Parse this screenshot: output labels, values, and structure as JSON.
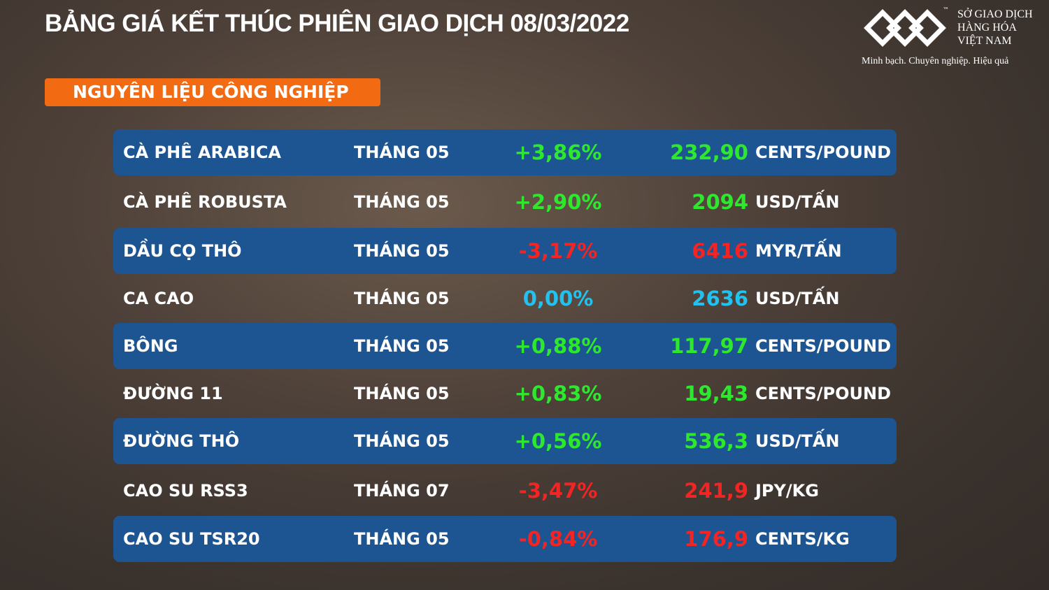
{
  "header": {
    "title": "BẢNG GIÁ KẾT THÚC PHIÊN GIAO DỊCH 08/03/2022"
  },
  "logo": {
    "trademark": "™",
    "lines": [
      "SỞ GIAO DỊCH",
      "HÀNG HÓA",
      "VIỆT NAM"
    ],
    "tagline": "Minh bạch. Chuyên nghiệp. Hiệu quả"
  },
  "section": {
    "label": "NGUYÊN LIỆU CÔNG NGHIỆP"
  },
  "table": {
    "rows": [
      {
        "name": "CÀ PHÊ ARABICA",
        "month": "THÁNG 05",
        "change": "+3,86%",
        "price": "232,90",
        "unit": "CENTS/POUND",
        "color": "#2ee82e"
      },
      {
        "name": "CÀ PHÊ ROBUSTA",
        "month": "THÁNG 05",
        "change": "+2,90%",
        "price": "2094",
        "unit": "USD/TẤN",
        "color": "#2ee82e"
      },
      {
        "name": "DẦU CỌ THÔ",
        "month": "THÁNG 05",
        "change": "-3,17%",
        "price": "6416",
        "unit": "MYR/TẤN",
        "color": "#f22424"
      },
      {
        "name": "CA CAO",
        "month": "THÁNG 05",
        "change": "0,00%",
        "price": "2636",
        "unit": "USD/TẤN",
        "color": "#22c2f0"
      },
      {
        "name": "BÔNG",
        "month": "THÁNG 05",
        "change": "+0,88%",
        "price": "117,97",
        "unit": "CENTS/POUND",
        "color": "#2ee82e"
      },
      {
        "name": "ĐƯỜNG 11",
        "month": "THÁNG 05",
        "change": "+0,83%",
        "price": "19,43",
        "unit": "CENTS/POUND",
        "color": "#2ee82e"
      },
      {
        "name": "ĐƯỜNG THÔ",
        "month": "THÁNG 05",
        "change": "+0,56%",
        "price": "536,3",
        "unit": "USD/TẤN",
        "color": "#2ee82e"
      },
      {
        "name": "CAO SU RSS3",
        "month": "THÁNG 07",
        "change": "-3,47%",
        "price": "241,9",
        "unit": "JPY/KG",
        "color": "#f22424"
      },
      {
        "name": "CAO SU TSR20",
        "month": "THÁNG 05",
        "change": "-0,84%",
        "price": "176,9",
        "unit": "CENTS/KG",
        "color": "#f22424"
      }
    ]
  }
}
